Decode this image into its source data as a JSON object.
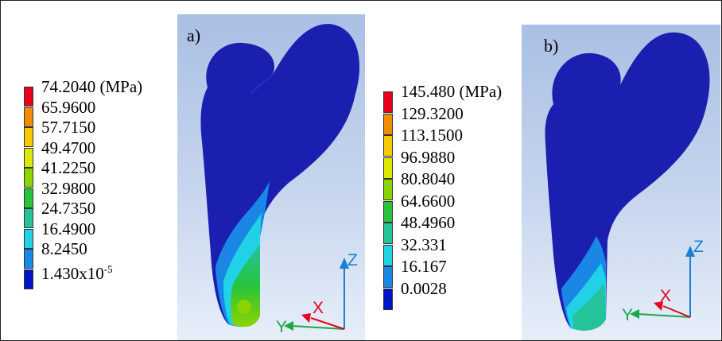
{
  "figure": {
    "panel_a": {
      "label": "a)",
      "legend": {
        "values": [
          "74.2040 (MPa)",
          "65.9600",
          "57.7150",
          "49.4700",
          "41.2250",
          "32.9800",
          "24.7350",
          "16.4900",
          "8.2450"
        ],
        "min_value_base": "1.430x10",
        "min_value_exp": "-5"
      }
    },
    "panel_b": {
      "label": "b)",
      "legend": {
        "values": [
          "145.480 (MPa)",
          "129.3200",
          "113.1500",
          "96.9880",
          "80.8040",
          "64.6600",
          "48.4960",
          "32.331",
          "16.167",
          "0.0028"
        ]
      }
    },
    "axes": {
      "x": "X",
      "y": "Y",
      "z": "Z"
    },
    "scale_colors": [
      "#e8001c",
      "#f28c00",
      "#f5c800",
      "#dde800",
      "#8bd400",
      "#27c43c",
      "#24c39a",
      "#21d1e6",
      "#1a87e6",
      "#0014c8"
    ],
    "colors": {
      "bone": "#1a1fb0",
      "x_axis": "#e8001c",
      "y_axis": "#19a84a",
      "z_axis": "#1a7fd0"
    }
  }
}
